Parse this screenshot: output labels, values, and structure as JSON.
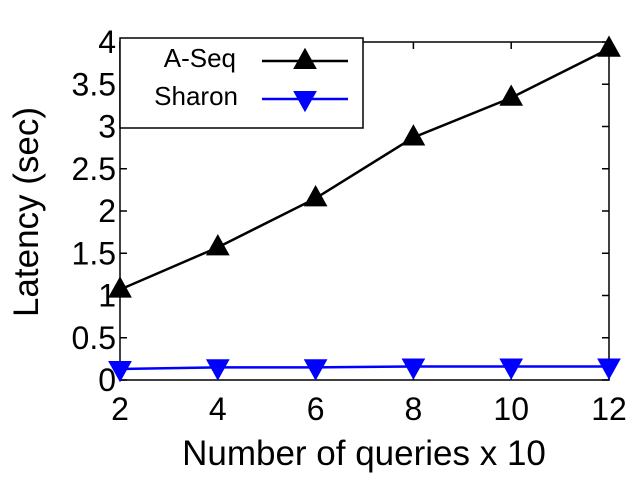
{
  "chart_data": {
    "type": "line",
    "xlabel": "Number of queries x 10",
    "ylabel": "Latency (sec)",
    "x": [
      2,
      4,
      6,
      8,
      10,
      12
    ],
    "xlim": [
      2,
      12
    ],
    "ylim": [
      0,
      4
    ],
    "xticks": [
      "2",
      "4",
      "6",
      "8",
      "10",
      "12"
    ],
    "yticks": [
      "0",
      "0.5",
      "1",
      "1.5",
      "2",
      "2.5",
      "3",
      "3.5",
      "4"
    ],
    "yticks_values": [
      0,
      0.5,
      1,
      1.5,
      2,
      2.5,
      3,
      3.5,
      4
    ],
    "legend_position": "top-left",
    "grid": false,
    "series": [
      {
        "name": "A-Seq",
        "values": [
          1.07,
          1.57,
          2.15,
          2.87,
          3.34,
          3.92
        ],
        "color": "#000000",
        "marker": "triangle-up"
      },
      {
        "name": "Sharon",
        "values": [
          0.13,
          0.15,
          0.15,
          0.16,
          0.16,
          0.16
        ],
        "color": "#0000ff",
        "marker": "triangle-down"
      }
    ]
  }
}
